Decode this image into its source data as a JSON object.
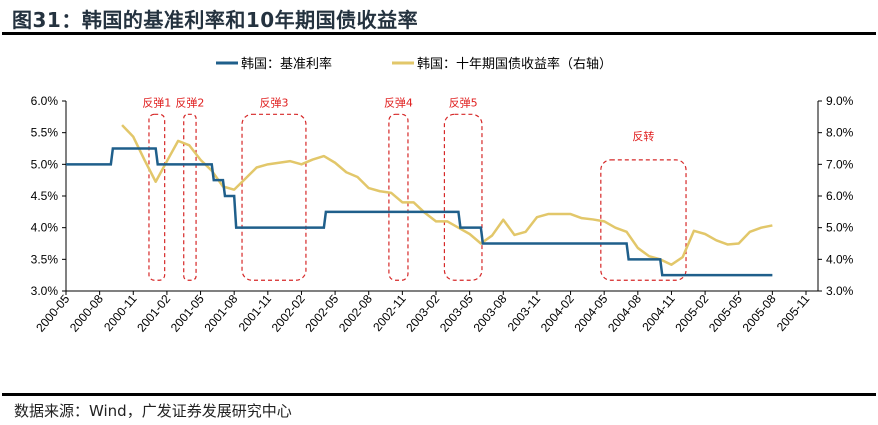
{
  "title": "图31：韩国的基准利率和10年期国债收益率",
  "source": "数据来源：Wind，广发证券发展研究中心",
  "chart_data": {
    "type": "line",
    "title": "图31：韩国的基准利率和10年期国债收益率",
    "x_start": "2000-05",
    "x_tick_labels": [
      "2000-05",
      "2000-08",
      "2000-11",
      "2001-02",
      "2001-05",
      "2001-08",
      "2001-11",
      "2002-02",
      "2002-05",
      "2002-08",
      "2002-11",
      "2003-02",
      "2003-05",
      "2003-08",
      "2003-11",
      "2004-02",
      "2004-05",
      "2004-08",
      "2004-11",
      "2005-02",
      "2005-05",
      "2005-08",
      "2005-11"
    ],
    "left_axis": {
      "ylim": [
        3.0,
        6.0
      ],
      "ticks": [
        "3.0%",
        "3.5%",
        "4.0%",
        "4.5%",
        "5.0%",
        "5.5%",
        "6.0%"
      ]
    },
    "right_axis": {
      "ylim": [
        3.0,
        9.0
      ],
      "ticks": [
        "3.0%",
        "4.0%",
        "5.0%",
        "6.0%",
        "7.0%",
        "8.0%",
        "9.0%"
      ]
    },
    "legend_position": "top",
    "series": [
      {
        "name": "韩国：基准利率",
        "axis": "left",
        "color": "#1f5f8b",
        "step": true,
        "changes": [
          [
            "2000-05",
            5.0
          ],
          [
            "2000-09",
            5.25
          ],
          [
            "2001-01",
            5.0
          ],
          [
            "2001-06",
            4.75
          ],
          [
            "2001-07",
            4.5
          ],
          [
            "2001-08",
            4.0
          ],
          [
            "2002-04",
            4.25
          ],
          [
            "2003-04",
            4.0
          ],
          [
            "2003-06",
            3.75
          ],
          [
            "2004-07",
            3.5
          ],
          [
            "2004-10",
            3.25
          ]
        ],
        "end": "2005-08"
      },
      {
        "name": "韩国：十年期国债收益率（右轴）",
        "axis": "right",
        "color": "#e2c76a",
        "start": "2000-10",
        "values": [
          8.24,
          7.87,
          7.14,
          6.45,
          7.1,
          7.74,
          7.6,
          7.14,
          6.8,
          6.3,
          6.2,
          6.55,
          6.9,
          7.0,
          7.05,
          7.1,
          7.0,
          7.15,
          7.26,
          7.05,
          6.75,
          6.6,
          6.25,
          6.15,
          6.1,
          5.8,
          5.8,
          5.47,
          5.2,
          5.2,
          5.0,
          4.8,
          4.5,
          4.75,
          5.25,
          4.77,
          4.87,
          5.33,
          5.43,
          5.43,
          5.43,
          5.3,
          5.26,
          5.2,
          5.0,
          4.87,
          4.36,
          4.1,
          4.0,
          3.83,
          4.07,
          4.9,
          4.8,
          4.6,
          4.47,
          4.5,
          4.87,
          5.0,
          5.07
        ]
      }
    ],
    "annotations": [
      {
        "label": "反弹1",
        "from": 7.4,
        "to": 8.8,
        "ytop": 5.79,
        "ybot": 3.17
      },
      {
        "label": "反弹2",
        "from": 10.5,
        "to": 11.6,
        "ytop": 5.79,
        "ybot": 3.17
      },
      {
        "label": "反弹3",
        "from": 15.7,
        "to": 21.4,
        "ytop": 5.79,
        "ybot": 3.17
      },
      {
        "label": "反弹4",
        "from": 28.8,
        "to": 30.5,
        "ytop": 5.79,
        "ybot": 3.17
      },
      {
        "label": "反弹5",
        "from": 33.75,
        "to": 37.1,
        "ytop": 5.79,
        "ybot": 3.17
      },
      {
        "label": "反转",
        "from": 47.7,
        "to": 55.3,
        "ytop": 5.07,
        "ybot": 3.17
      }
    ]
  }
}
